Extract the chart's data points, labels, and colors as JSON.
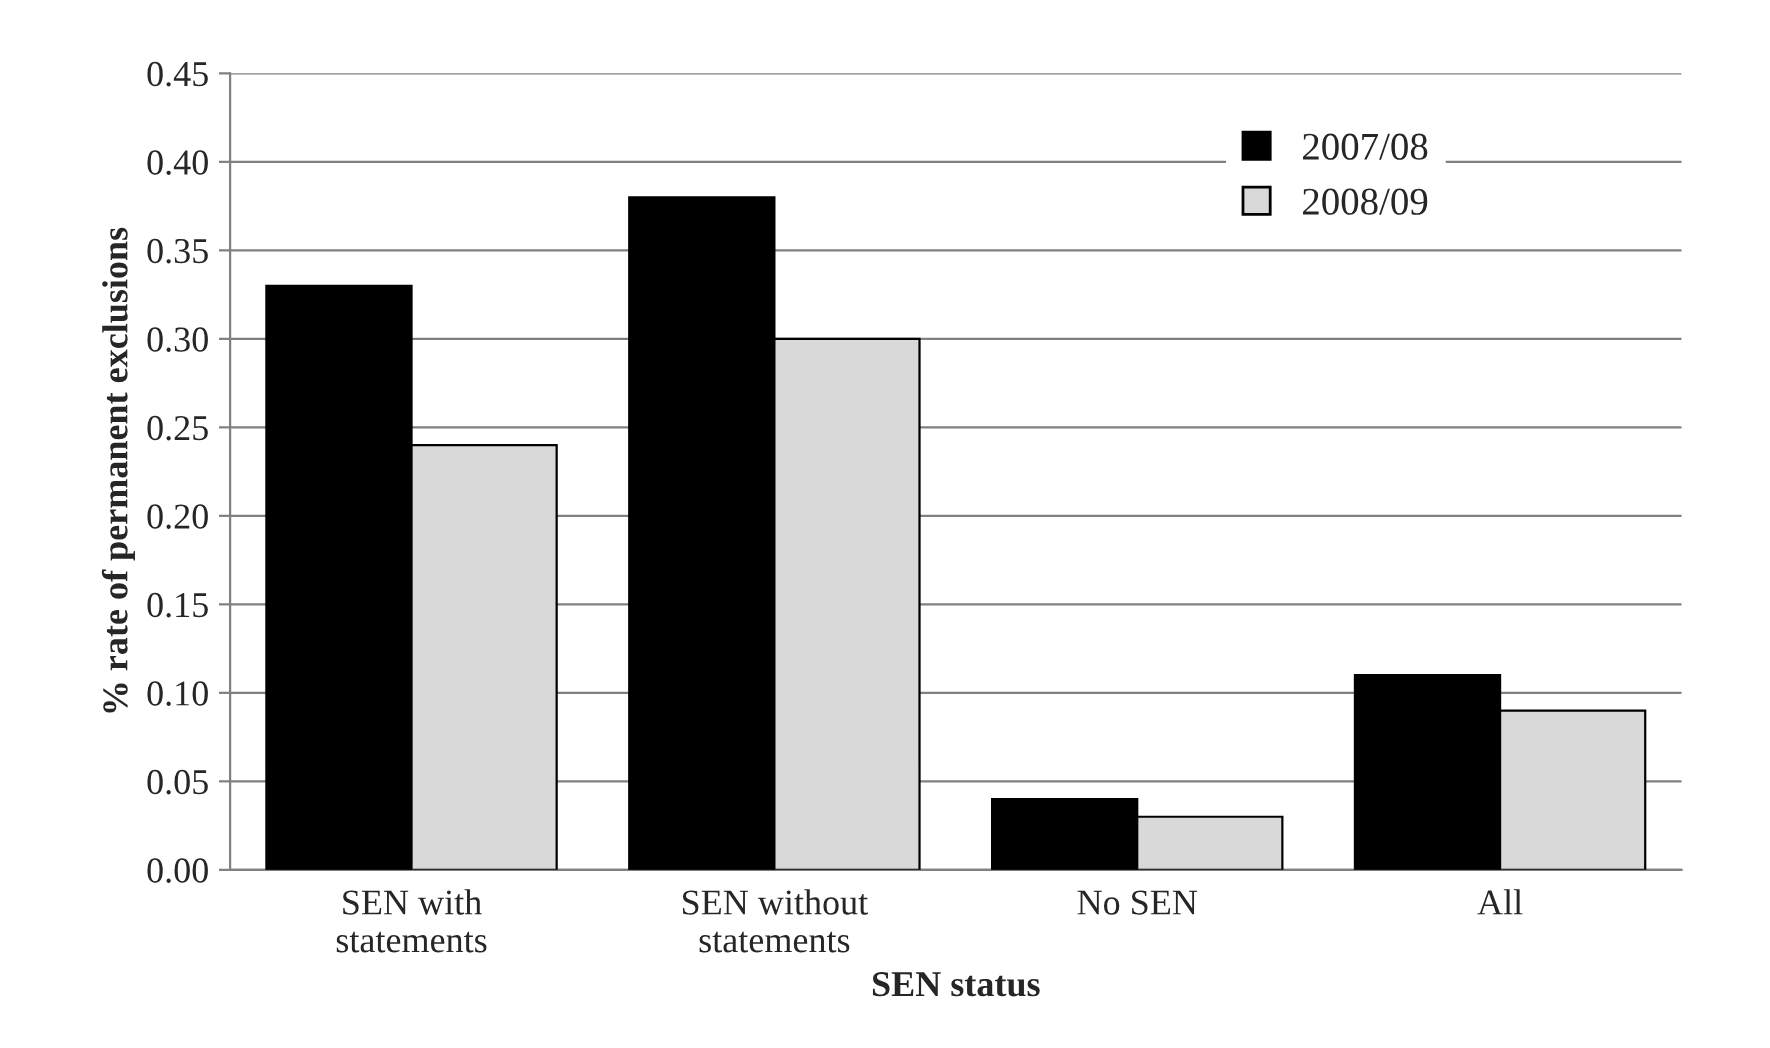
{
  "chart_data": {
    "type": "bar",
    "xlabel": "SEN status",
    "ylabel": "% rate of permanent exclusions",
    "categories": [
      "SEN with\nstatements",
      "SEN without\nstatements",
      "No SEN",
      "All"
    ],
    "series": [
      {
        "name": "2007/08",
        "color": "#000000",
        "values": [
          0.33,
          0.38,
          0.04,
          0.11
        ]
      },
      {
        "name": "2008/09",
        "color": "#d9d9d9",
        "values": [
          0.24,
          0.3,
          0.03,
          0.09
        ]
      }
    ],
    "ylim": [
      0,
      0.45
    ],
    "yticks": [
      {
        "value": 0,
        "label": "0.00"
      },
      {
        "value": 0.05,
        "label": "0.05"
      },
      {
        "value": 0.1,
        "label": "0.10"
      },
      {
        "value": 0.15,
        "label": "0.15"
      },
      {
        "value": 0.2,
        "label": "0.20"
      },
      {
        "value": 0.25,
        "label": "0.25"
      },
      {
        "value": 0.3,
        "label": "0.30"
      },
      {
        "value": 0.35,
        "label": "0.35"
      },
      {
        "value": 0.4,
        "label": "0.40"
      },
      {
        "value": 0.45,
        "label": "0.45"
      }
    ],
    "grid": "y",
    "legend": "top right"
  }
}
